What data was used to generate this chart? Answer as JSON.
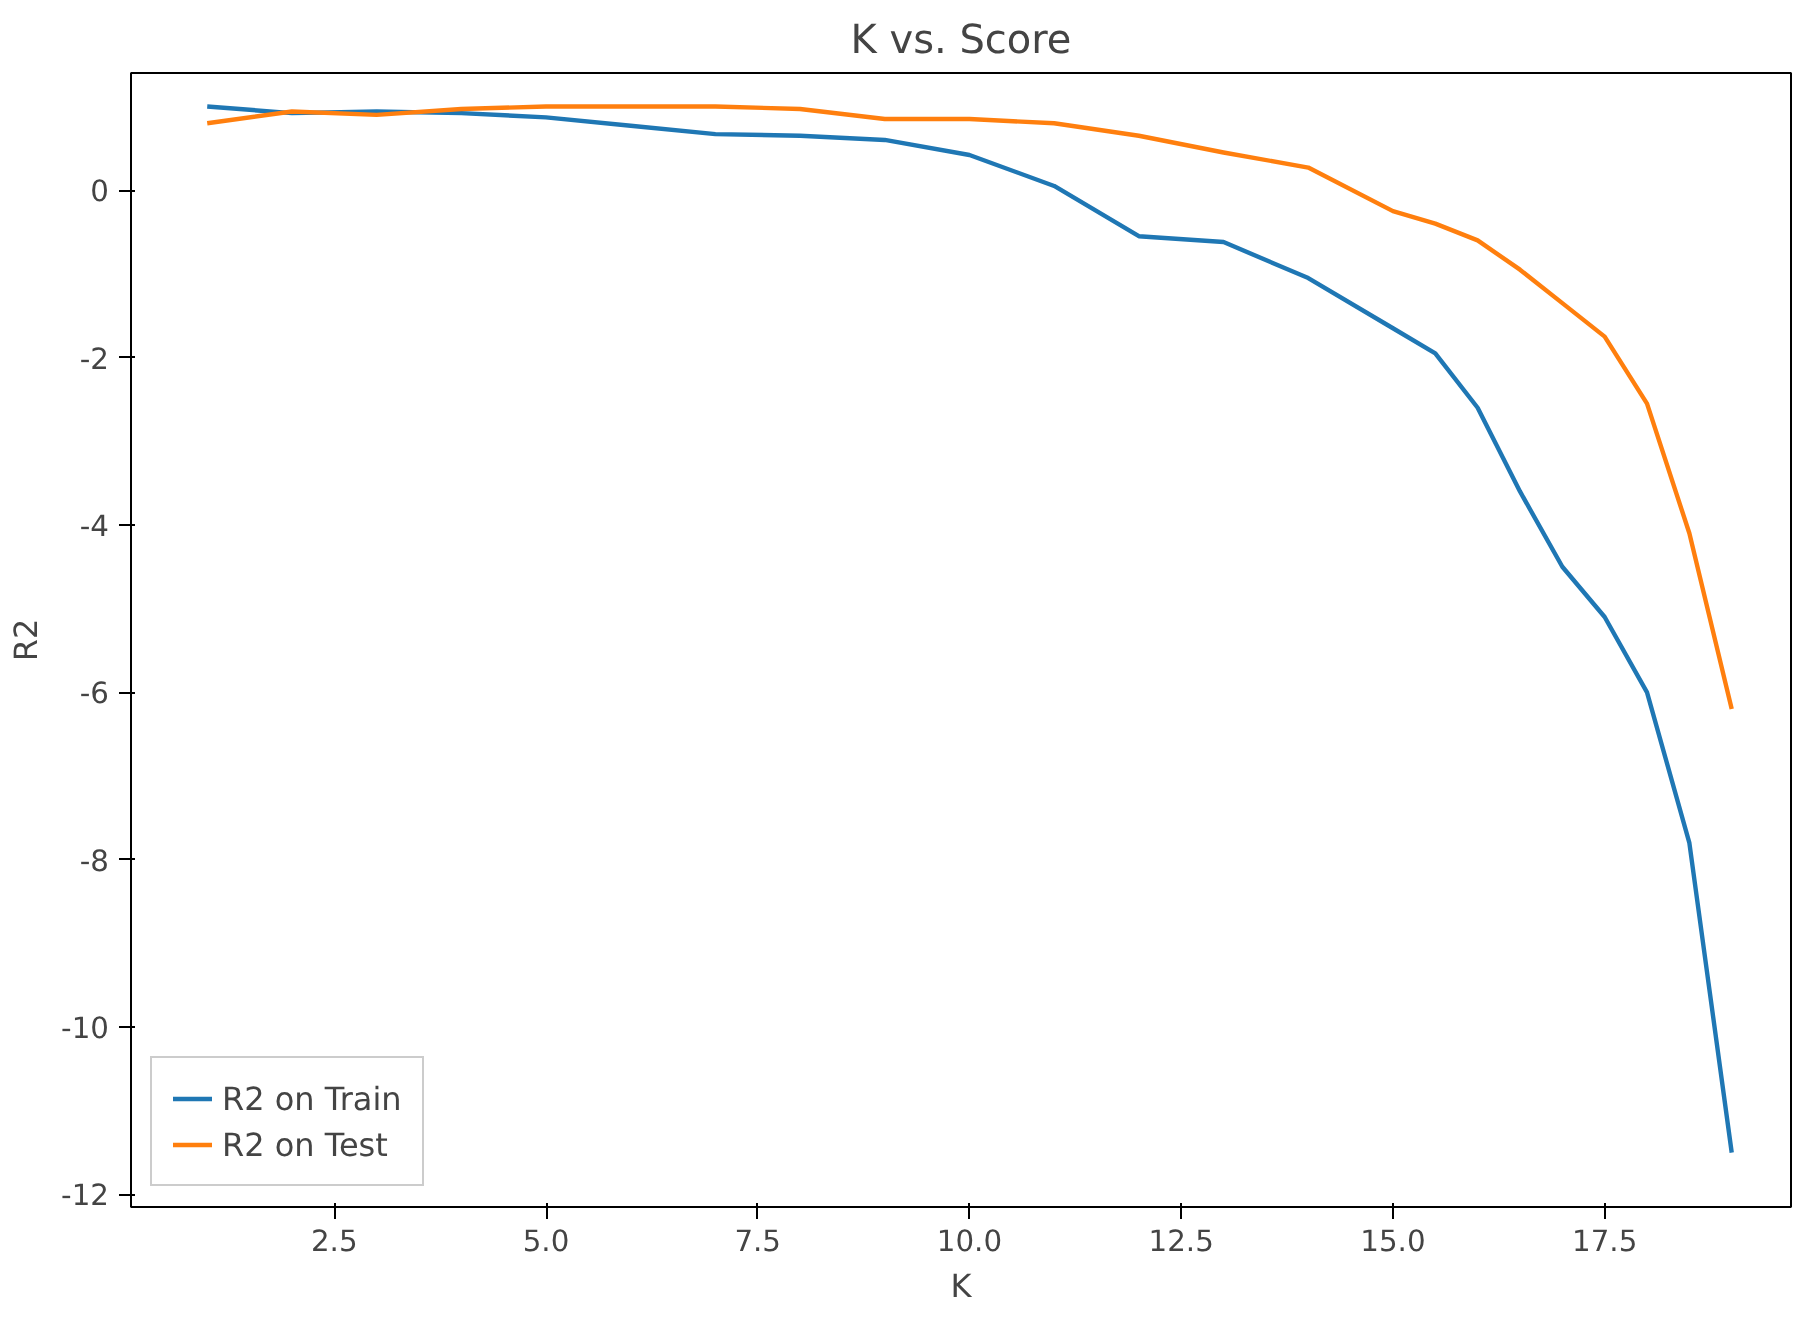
{
  "chart_data": {
    "type": "line",
    "title": "K vs. Score",
    "xlabel": "K",
    "ylabel": "R2",
    "x": [
      1,
      2,
      3,
      4,
      5,
      6,
      7,
      8,
      9,
      10,
      11,
      12,
      13,
      14,
      15,
      15.5,
      16,
      16.5,
      17,
      17.5,
      18,
      18.5,
      19
    ],
    "series": [
      {
        "name": "R2 on Train",
        "color": "#1f77b4",
        "values": [
          1.0,
          0.92,
          0.94,
          0.92,
          0.87,
          0.77,
          0.67,
          0.65,
          0.6,
          0.42,
          0.05,
          -0.55,
          -0.62,
          -1.05,
          -1.65,
          -1.95,
          -2.6,
          -3.6,
          -4.5,
          -5.1,
          -6.0,
          -7.8,
          -11.5
        ]
      },
      {
        "name": "R2 on Test",
        "color": "#ff7f0e",
        "values": [
          0.8,
          0.94,
          0.9,
          0.97,
          1.0,
          1.0,
          1.0,
          0.97,
          0.85,
          0.85,
          0.8,
          0.65,
          0.45,
          0.27,
          -0.25,
          -0.4,
          -0.6,
          -0.95,
          -1.35,
          -1.75,
          -2.55,
          -4.1,
          -6.2
        ]
      }
    ],
    "xlim": [
      0.1,
      19.7
    ],
    "ylim": [
      -12.15,
      1.4
    ],
    "xticks": [
      {
        "value": 2.5,
        "label": "2.5"
      },
      {
        "value": 5,
        "label": "5.0"
      },
      {
        "value": 7.5,
        "label": "7.5"
      },
      {
        "value": 10,
        "label": "10.0"
      },
      {
        "value": 12.5,
        "label": "12.5"
      },
      {
        "value": 15,
        "label": "15.0"
      },
      {
        "value": 17.5,
        "label": "17.5"
      }
    ],
    "yticks": [
      -12,
      -10,
      -8,
      -6,
      -4,
      -2,
      0
    ],
    "grid": false,
    "legend": "bottom left",
    "line_style": "solid",
    "marker": "none"
  }
}
